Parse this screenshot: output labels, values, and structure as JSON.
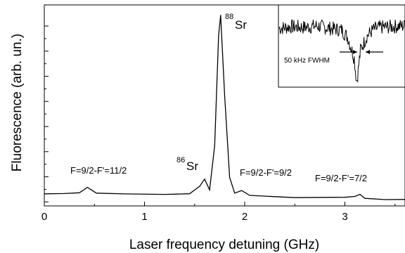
{
  "chart_data": [
    {
      "type": "line",
      "title": "",
      "xlabel": "Laser frequency detuning (GHz)",
      "ylabel": "Fluorescence (arb. un.)",
      "xlim": [
        0,
        3.6
      ],
      "ylim": [
        0,
        1.0
      ],
      "xticks": [
        "0",
        "1",
        "2",
        "3"
      ],
      "show_y_tick_labels": false,
      "grid": false,
      "series": [
        {
          "x": [
            0.0,
            0.2,
            0.35,
            0.43,
            0.52,
            0.8,
            1.2,
            1.45,
            1.55,
            1.6,
            1.65,
            1.7,
            1.74,
            1.76,
            1.8,
            1.85,
            1.9,
            1.97,
            2.05,
            2.5,
            3.0,
            3.1,
            3.15,
            3.2,
            3.4,
            3.6
          ],
          "y": [
            0.06,
            0.058,
            0.065,
            0.09,
            0.062,
            0.058,
            0.055,
            0.06,
            0.1,
            0.135,
            0.08,
            0.3,
            0.85,
            0.95,
            0.55,
            0.14,
            0.06,
            0.075,
            0.05,
            0.04,
            0.04,
            0.045,
            0.055,
            0.04,
            0.035,
            0.035
          ]
        }
      ],
      "annotations": [
        {
          "text": "F=9/2-F'=11/2",
          "x": 0.43,
          "y": 0.12
        },
        {
          "text": "F=9/2-F'=9/2",
          "x": 1.97,
          "y": 0.1
        },
        {
          "text": "F=9/2-F'=7/2",
          "x": 3.15,
          "y": 0.08
        },
        {
          "text": "86",
          "sup_of": "Sr",
          "x": 1.6,
          "y": 0.17
        },
        {
          "text": "88",
          "sup_of": "Sr",
          "x": 1.76,
          "y": 0.96
        }
      ]
    },
    {
      "type": "line",
      "title": "",
      "label": "50 kHz FWHM",
      "series": [
        {
          "x": [
            0,
            0.1,
            0.2,
            0.3,
            0.4,
            0.5,
            0.55,
            0.6,
            0.62,
            0.65,
            0.7,
            0.75,
            0.8,
            0.9,
            1.0
          ],
          "y": [
            0.72,
            0.74,
            0.73,
            0.75,
            0.72,
            0.7,
            0.6,
            0.35,
            0.05,
            0.45,
            0.62,
            0.7,
            0.73,
            0.74,
            0.75
          ]
        }
      ]
    }
  ]
}
